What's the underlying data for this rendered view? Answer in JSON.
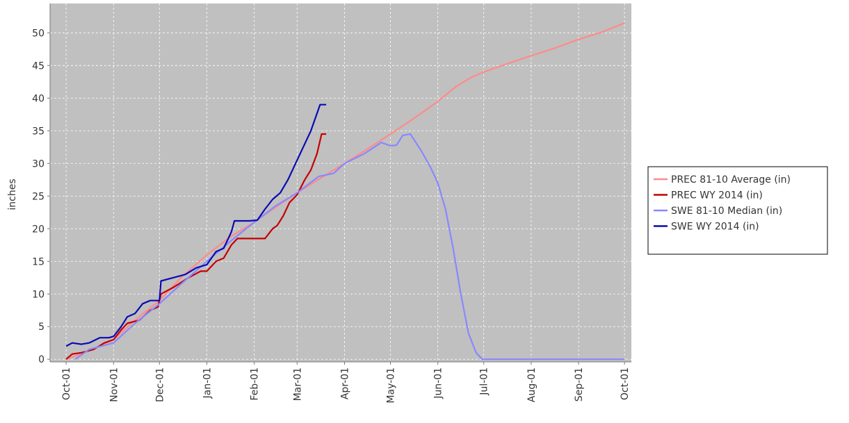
{
  "chart_data": {
    "type": "line",
    "ylabel": "inches",
    "xlim": [
      -10.5,
      369.5
    ],
    "xticks": [
      {
        "value": 0,
        "label": "Oct-01"
      },
      {
        "value": 31,
        "label": "Nov-01"
      },
      {
        "value": 61,
        "label": "Dec-01"
      },
      {
        "value": 92,
        "label": "Jan-01"
      },
      {
        "value": 123,
        "label": "Feb-01"
      },
      {
        "value": 151,
        "label": "Mar-01"
      },
      {
        "value": 182,
        "label": "Apr-01"
      },
      {
        "value": 212,
        "label": "May-01"
      },
      {
        "value": 243,
        "label": "Jun-01"
      },
      {
        "value": 273,
        "label": "Jul-01"
      },
      {
        "value": 304,
        "label": "Aug-01"
      },
      {
        "value": 335,
        "label": "Sep-01"
      },
      {
        "value": 365,
        "label": "Oct-01"
      }
    ],
    "ylim": [
      -0.4,
      54.5
    ],
    "yticks": [
      0,
      5,
      10,
      15,
      20,
      25,
      30,
      35,
      40,
      45,
      50
    ],
    "grid": true,
    "legend": "right",
    "series": [
      {
        "name": "PREC 81-10 Average (in)",
        "color": "#ff8a8a",
        "x": [
          0,
          15,
          31,
          45,
          61,
          75,
          92,
          107,
          123,
          137,
          151,
          166,
          182,
          197,
          212,
          228,
          243,
          255,
          265,
          273,
          290,
          304,
          320,
          335,
          350,
          365
        ],
        "values": [
          0,
          1.3,
          3,
          6,
          9,
          12.5,
          16,
          18.7,
          21,
          23.3,
          25.5,
          27.7,
          30,
          32.2,
          34.5,
          37,
          39.5,
          41.8,
          43.2,
          44,
          45.4,
          46.5,
          47.7,
          49,
          50.1,
          51.5
        ]
      },
      {
        "name": "PREC WY 2014  (in)",
        "color": "#c40000",
        "x": [
          0,
          4,
          10,
          18,
          25,
          31,
          36,
          40,
          48,
          55,
          60,
          62,
          70,
          80,
          88,
          92,
          98,
          103,
          108,
          112,
          120,
          130,
          135,
          138,
          142,
          146,
          151,
          156,
          160,
          164,
          167,
          170
        ],
        "values": [
          0,
          0.8,
          1,
          1.5,
          2.5,
          3,
          4.5,
          5.5,
          6,
          7.5,
          8,
          10,
          11,
          12.5,
          13.5,
          13.5,
          15,
          15.5,
          17.5,
          18.5,
          18.5,
          18.5,
          20,
          20.5,
          22,
          24,
          25.2,
          27.5,
          29,
          31.5,
          34.5,
          34.5
        ]
      },
      {
        "name": "SWE 81-10 Median (in)",
        "color": "#8888ff",
        "x": [
          6,
          15,
          31,
          45,
          61,
          75,
          92,
          107,
          123,
          137,
          151,
          165,
          175,
          182,
          195,
          206,
          212,
          216,
          220,
          225,
          232,
          238,
          243,
          248,
          253,
          258,
          263,
          268,
          272,
          276,
          290,
          310,
          340,
          365
        ],
        "values": [
          0,
          1.5,
          2.5,
          5.5,
          8.5,
          11.5,
          15,
          18,
          21,
          23.5,
          25.5,
          28,
          28.5,
          30,
          31.5,
          33.2,
          32.7,
          32.8,
          34.3,
          34.5,
          32,
          29.5,
          27,
          23,
          17,
          10,
          4,
          1,
          0,
          0,
          0,
          0,
          0,
          0
        ]
      },
      {
        "name": "SWE WY 2014  (in)",
        "color": "#0a0ab4",
        "x": [
          0,
          4,
          10,
          15,
          22,
          28,
          31,
          36,
          40,
          45,
          50,
          55,
          61,
          62,
          70,
          78,
          85,
          92,
          98,
          103,
          108,
          110,
          120,
          125,
          130,
          135,
          140,
          145,
          150,
          155,
          160,
          163,
          166,
          170
        ],
        "values": [
          2,
          2.5,
          2.3,
          2.5,
          3.3,
          3.3,
          3.5,
          5,
          6.5,
          7,
          8.5,
          9,
          9,
          12,
          12.5,
          13,
          14,
          14.5,
          16.5,
          17,
          19.5,
          21.2,
          21.2,
          21.3,
          23,
          24.5,
          25.5,
          27.5,
          30,
          32.5,
          35,
          37,
          39,
          39
        ]
      }
    ]
  }
}
